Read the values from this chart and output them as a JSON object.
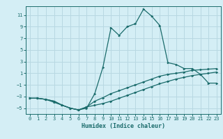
{
  "xlabel": "Humidex (Indice chaleur)",
  "bg_color": "#d4eef5",
  "line_color": "#1a6b6b",
  "grid_color": "#b8d8e2",
  "xlim": [
    -0.5,
    23.5
  ],
  "ylim": [
    -6.0,
    12.5
  ],
  "xticks": [
    0,
    1,
    2,
    3,
    4,
    5,
    6,
    7,
    8,
    9,
    10,
    11,
    12,
    13,
    14,
    15,
    16,
    17,
    18,
    19,
    20,
    21,
    22,
    23
  ],
  "yticks": [
    -5,
    -3,
    -1,
    1,
    3,
    5,
    7,
    9,
    11
  ],
  "series1_x": [
    0,
    1,
    2,
    3,
    4,
    5,
    6,
    7,
    8,
    9,
    10,
    11,
    12,
    13,
    14,
    15,
    16,
    17,
    18,
    19,
    20,
    21,
    22,
    23
  ],
  "series1_y": [
    -3.3,
    -3.3,
    -3.5,
    -4.0,
    -4.5,
    -5.0,
    -5.3,
    -5.0,
    -2.5,
    2.0,
    8.8,
    7.5,
    9.0,
    9.5,
    12.0,
    10.8,
    9.2,
    2.8,
    2.5,
    1.8,
    1.8,
    0.8,
    -0.7,
    -0.7
  ],
  "series2_x": [
    0,
    1,
    2,
    3,
    4,
    5,
    6,
    7,
    8,
    9,
    10,
    11,
    12,
    13,
    14,
    15,
    16,
    17,
    18,
    19,
    20,
    21,
    22,
    23
  ],
  "series2_y": [
    -3.3,
    -3.3,
    -3.5,
    -3.8,
    -4.5,
    -5.0,
    -5.3,
    -4.8,
    -3.8,
    -3.2,
    -2.5,
    -2.0,
    -1.5,
    -1.0,
    -0.5,
    0.0,
    0.5,
    0.8,
    1.0,
    1.2,
    1.5,
    1.6,
    1.7,
    1.8
  ],
  "series3_x": [
    0,
    1,
    2,
    3,
    4,
    5,
    6,
    7,
    8,
    9,
    10,
    11,
    12,
    13,
    14,
    15,
    16,
    17,
    18,
    19,
    20,
    21,
    22,
    23
  ],
  "series3_y": [
    -3.3,
    -3.3,
    -3.5,
    -3.8,
    -4.5,
    -5.0,
    -5.3,
    -4.8,
    -4.5,
    -4.2,
    -3.8,
    -3.3,
    -2.8,
    -2.3,
    -1.8,
    -1.3,
    -0.8,
    -0.4,
    0.0,
    0.3,
    0.6,
    0.8,
    1.0,
    1.2
  ]
}
